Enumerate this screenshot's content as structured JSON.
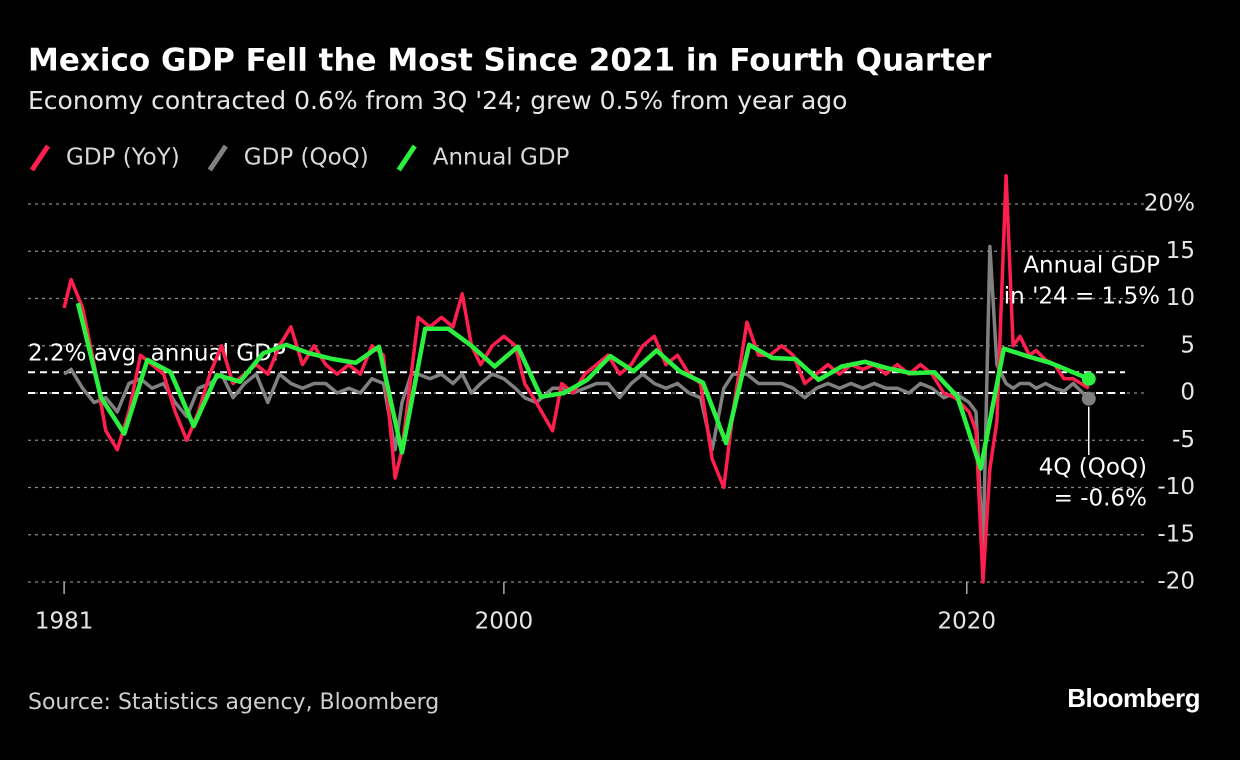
{
  "chart_data": {
    "type": "line",
    "title": "Mexico GDP Fell the Most Since 2021 in Fourth Quarter",
    "subtitle": "Economy contracted 0.6% from 3Q '24; grew 0.5% from year ago",
    "source": "Source: Statistics agency, Bloomberg",
    "brand": "Bloomberg",
    "x": [
      1981.0,
      1981.3,
      1981.8,
      1982.3,
      1982.8,
      1983.3,
      1983.8,
      1984.3,
      1984.8,
      1985.3,
      1985.8,
      1986.3,
      1986.8,
      1987.3,
      1987.8,
      1988.3,
      1988.8,
      1989.3,
      1989.8,
      1990.3,
      1990.8,
      1991.3,
      1991.8,
      1992.3,
      1992.8,
      1993.3,
      1993.8,
      1994.3,
      1994.8,
      1995.3,
      1995.6,
      1996.0,
      1996.3,
      1996.8,
      1997.3,
      1997.8,
      1998.2,
      1998.6,
      1999.0,
      1999.5,
      2000.0,
      2000.5,
      2000.9,
      2001.4,
      2002.1,
      2002.5,
      2003.0,
      2003.5,
      2004.0,
      2004.5,
      2005.0,
      2005.5,
      2006.0,
      2006.5,
      2007.0,
      2007.5,
      2008.0,
      2008.5,
      2009.0,
      2009.5,
      2009.9,
      2010.5,
      2011.0,
      2011.5,
      2012.0,
      2012.5,
      2013.0,
      2013.5,
      2014.0,
      2014.5,
      2015.0,
      2015.5,
      2016.0,
      2016.5,
      2017.0,
      2017.5,
      2018.0,
      2018.5,
      2019.0,
      2019.5,
      2020.1,
      2020.4,
      2020.7,
      2021.0,
      2021.3,
      2021.7,
      2022.0,
      2022.3,
      2022.7,
      2023.0,
      2023.4,
      2023.8,
      2024.2,
      2024.6,
      2025.27
    ],
    "series": [
      {
        "name": "GDP (YoY)",
        "color": "#ff1f4f",
        "values": [
          9,
          12,
          9,
          3,
          -4,
          -6,
          -2,
          4,
          3,
          2,
          -2,
          -5,
          -2,
          2,
          5,
          1,
          2,
          3,
          2,
          5,
          7,
          3,
          5,
          3,
          2,
          3,
          2,
          5,
          4,
          -9,
          -6,
          2,
          8,
          7,
          8,
          7,
          10.5,
          5,
          3,
          5,
          6,
          5,
          1,
          -1,
          -4,
          1,
          0,
          2,
          3,
          4,
          2,
          3,
          5,
          6,
          3,
          4,
          2,
          1,
          -7,
          -10,
          -2,
          7.5,
          4,
          4,
          5,
          4,
          1,
          2,
          3,
          2,
          3,
          2.5,
          3,
          2,
          3,
          2,
          3,
          2,
          0,
          -0.5,
          -2,
          -4,
          -20,
          -8,
          -3,
          23,
          5,
          6,
          4,
          4.5,
          3.5,
          3,
          1.5,
          1.5,
          0.5
        ]
      },
      {
        "name": "GDP (QoQ)",
        "color": "#808080",
        "values": [
          2,
          2.5,
          0.5,
          -1,
          -0.5,
          -2,
          1,
          1.5,
          0.5,
          1,
          -1,
          -2.5,
          0.5,
          1,
          2,
          -0.5,
          1,
          2,
          -1,
          2,
          1,
          0.5,
          1,
          1,
          0,
          0.5,
          0,
          1.5,
          1,
          -6,
          -1,
          2,
          2,
          1.5,
          2,
          1,
          2,
          0,
          1,
          2,
          1.5,
          0.5,
          -0.5,
          -1,
          0.5,
          0.5,
          0,
          0.5,
          1,
          1,
          -0.5,
          1,
          2,
          1,
          0.5,
          1,
          0,
          -0.5,
          -6,
          0.5,
          2,
          2,
          1,
          1,
          1,
          0.5,
          -0.5,
          0.5,
          1,
          0.5,
          1,
          0.5,
          1,
          0.5,
          0.5,
          0,
          1,
          0.5,
          -0.5,
          0,
          -1,
          -2,
          -17,
          15.5,
          3,
          1,
          0.5,
          1,
          1,
          0.5,
          1,
          0.5,
          0.2,
          1,
          -0.6
        ]
      },
      {
        "name": "Annual GDP",
        "color": "#2bf03f",
        "x": [
          1981.6,
          1982.6,
          1983.6,
          1984.6,
          1985.6,
          1986.6,
          1987.6,
          1988.6,
          1989.6,
          1990.6,
          1991.6,
          1992.6,
          1993.6,
          1994.6,
          1995.6,
          1996.6,
          1997.6,
          1998.6,
          1999.6,
          2000.6,
          2001.6,
          2002.6,
          2003.6,
          2004.6,
          2005.6,
          2006.6,
          2007.6,
          2008.6,
          2009.6,
          2010.6,
          2011.6,
          2012.6,
          2013.6,
          2014.6,
          2015.6,
          2016.6,
          2017.6,
          2018.6,
          2019.6,
          2020.6,
          2021.6,
          2022.6,
          2023.6,
          2025.27
        ],
        "values": [
          9.5,
          -0.5,
          -4.3,
          3.5,
          2.2,
          -3.5,
          1.9,
          1.2,
          4.2,
          5.1,
          4.2,
          3.6,
          3.2,
          4.9,
          -6.3,
          6.8,
          6.8,
          5,
          2.8,
          4.9,
          -0.4,
          0,
          1.4,
          3.9,
          2.3,
          4.5,
          2.3,
          1.1,
          -5.3,
          5.1,
          3.7,
          3.6,
          1.4,
          2.8,
          3.3,
          2.6,
          2.1,
          2.2,
          -0.4,
          -8,
          4.7,
          3.9,
          3.2,
          1.5
        ]
      }
    ],
    "xlim": [
      1979.44,
      2027.7
    ],
    "xticks": [
      1981,
      2000,
      2020
    ],
    "ylim": [
      -20,
      20
    ],
    "yticks": [
      {
        "value": 20,
        "label": "20%"
      },
      15,
      10,
      5,
      0,
      -5,
      -10,
      -15,
      -20
    ],
    "grid": true,
    "reference_lines": [
      {
        "value": 2.2,
        "label": "2.2% avg. annual GDP"
      },
      {
        "value": 0
      }
    ],
    "annotations": [
      {
        "lines": [
          "Annual GDP",
          "in '24 = 1.5%"
        ]
      },
      {
        "lines": [
          "4Q (QoQ)",
          "= -0.6%"
        ]
      }
    ]
  }
}
